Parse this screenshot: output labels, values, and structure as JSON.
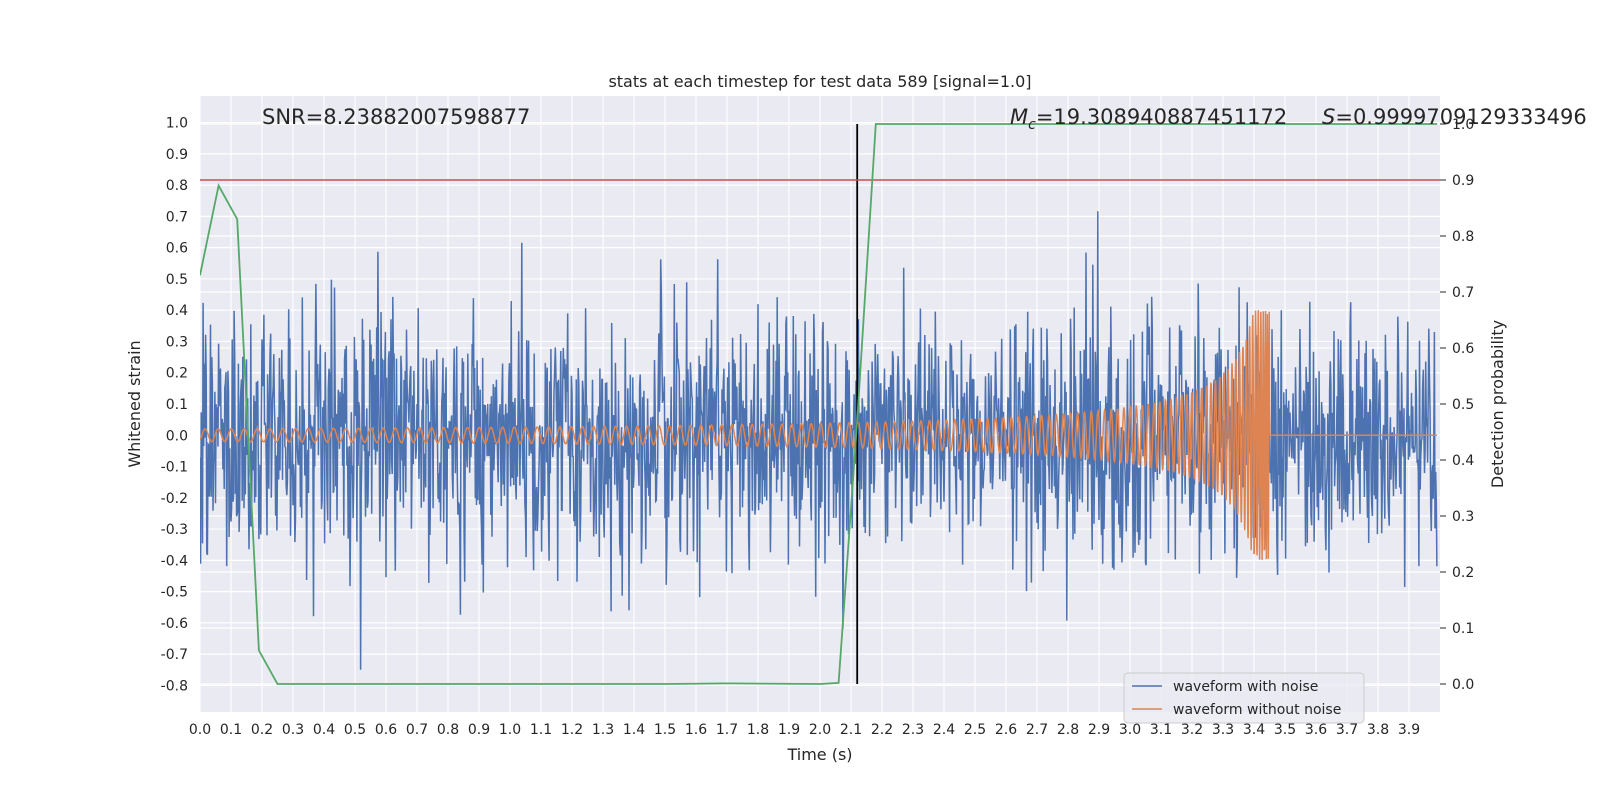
{
  "chart_data": {
    "type": "line",
    "title": "stats at each timestep for test data 589 [signal=1.0]",
    "xlabel": "Time (s)",
    "ylabel": "Whitened strain",
    "y2label": "Detection probability",
    "xlim": [
      0.0,
      4.0
    ],
    "ylim": [
      -0.885,
      1.085
    ],
    "y2lim": [
      -0.05,
      1.05
    ],
    "x_ticks": [
      "0.0",
      "0.1",
      "0.2",
      "0.3",
      "0.4",
      "0.5",
      "0.6",
      "0.7",
      "0.8",
      "0.9",
      "1.0",
      "1.1",
      "1.2",
      "1.3",
      "1.4",
      "1.5",
      "1.6",
      "1.7",
      "1.8",
      "1.9",
      "2.0",
      "2.1",
      "2.2",
      "2.3",
      "2.4",
      "2.5",
      "2.6",
      "2.7",
      "2.8",
      "2.9",
      "3.0",
      "3.1",
      "3.2",
      "3.3",
      "3.4",
      "3.5",
      "3.6",
      "3.7",
      "3.8",
      "3.9"
    ],
    "y_ticks": [
      "1.0",
      "0.9",
      "0.8",
      "0.7",
      "0.6",
      "0.5",
      "0.4",
      "0.3",
      "0.2",
      "0.1",
      "0.0",
      "-0.1",
      "-0.2",
      "-0.3",
      "-0.4",
      "-0.5",
      "-0.6",
      "-0.7",
      "-0.8"
    ],
    "y2_ticks": [
      "1.0",
      "0.9",
      "0.8",
      "0.7",
      "0.6",
      "0.5",
      "0.4",
      "0.3",
      "0.2",
      "0.1",
      "0.0"
    ],
    "annotations": {
      "snr": "SNR=8.23882007598877",
      "mc_symbol": "M",
      "mc_sub": "c",
      "mc_value": "=19.308940887451172",
      "s_symbol": "S",
      "s_value": "=0.9999709129333496"
    },
    "threshold_y2": 0.9,
    "vline_x": 2.12,
    "grid": true,
    "legend_position": "lower-right",
    "series": [
      {
        "name": "waveform with noise",
        "color": "#4c72b0",
        "noise_seed": 589,
        "sample_interval": 0.002
      },
      {
        "name": "waveform without noise",
        "color": "#dd8452",
        "chirp_end_x": 3.45,
        "chirp_amp_start": 0.02,
        "chirp_amp_peak": 0.4,
        "sample_interval": 0.001
      },
      {
        "color": "#55a868",
        "axis": "right",
        "x": [
          0.0,
          0.06,
          0.12,
          0.19,
          0.25,
          0.5,
          1.0,
          1.5,
          1.7,
          2.0,
          2.06,
          2.12,
          2.18,
          2.5,
          3.0,
          3.5,
          3.99
        ],
        "y": [
          0.73,
          0.89,
          0.83,
          0.06,
          0.0,
          0.0,
          0.0,
          0.0,
          0.001,
          0.0,
          0.002,
          0.47,
          1.0,
          1.0,
          1.0,
          1.0,
          1.0
        ]
      }
    ]
  }
}
